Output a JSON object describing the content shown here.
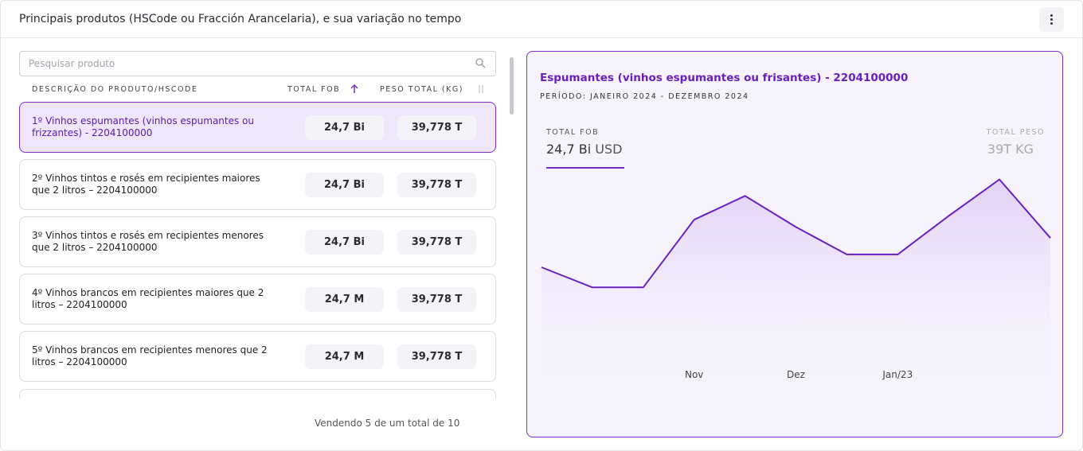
{
  "header": {
    "title": "Principais produtos (HSCode ou Fracción Arancelaria), e sua variação no tempo"
  },
  "search": {
    "placeholder": "Pesquisar produto"
  },
  "table": {
    "columns": [
      "DESCRIÇÃO DO PRODUTO/HSCODE",
      "TOTAL FOB",
      "PESO TOTAL (KG)"
    ],
    "rows": [
      {
        "label": "1º Vinhos espumantes (vinhos espumantes ou frizzantes) - 2204100000",
        "fob": "24,7 Bi",
        "weight": "39,778 T"
      },
      {
        "label": "2º Vinhos tintos e rosés em recipientes maiores que 2 litros – 2204100000",
        "fob": "24,7 Bi",
        "weight": "39,778 T"
      },
      {
        "label": "3º Vinhos tintos e rosés em recipientes menores que 2 litros – 2204100000",
        "fob": "24,7 Bi",
        "weight": "39,778 T"
      },
      {
        "label": "4º Vinhos brancos em recipientes maiores que 2 litros – 2204100000",
        "fob": "24,7 M",
        "weight": "39,778 T"
      },
      {
        "label": "5º Vinhos brancos em recipientes menores que 2 litros – 2204100000",
        "fob": "24,7 M",
        "weight": "39,778 T"
      }
    ]
  },
  "footer": "Vendendo 5 de um total de 10",
  "detail": {
    "title": "Espumantes (vinhos espumantes ou frisantes) - 2204100000",
    "period": "PERÍODO: JANEIRO 2024 - DEZEMBRO 2024",
    "fob_label": "TOTAL FOB",
    "fob_value": "24,7 Bi",
    "fob_unit": "USD",
    "peso_label": "TOTAL PESO",
    "peso_value": "39T KG"
  },
  "chart_data": {
    "type": "line",
    "categories": [
      null,
      null,
      null,
      "Nov",
      null,
      "Dez",
      null,
      "Jan/23",
      null,
      null,
      null
    ],
    "values": [
      50,
      39,
      39,
      76,
      89,
      72,
      57,
      57,
      78,
      98,
      66
    ],
    "ylim": [
      0,
      100
    ],
    "color": "#6a1fc2"
  }
}
